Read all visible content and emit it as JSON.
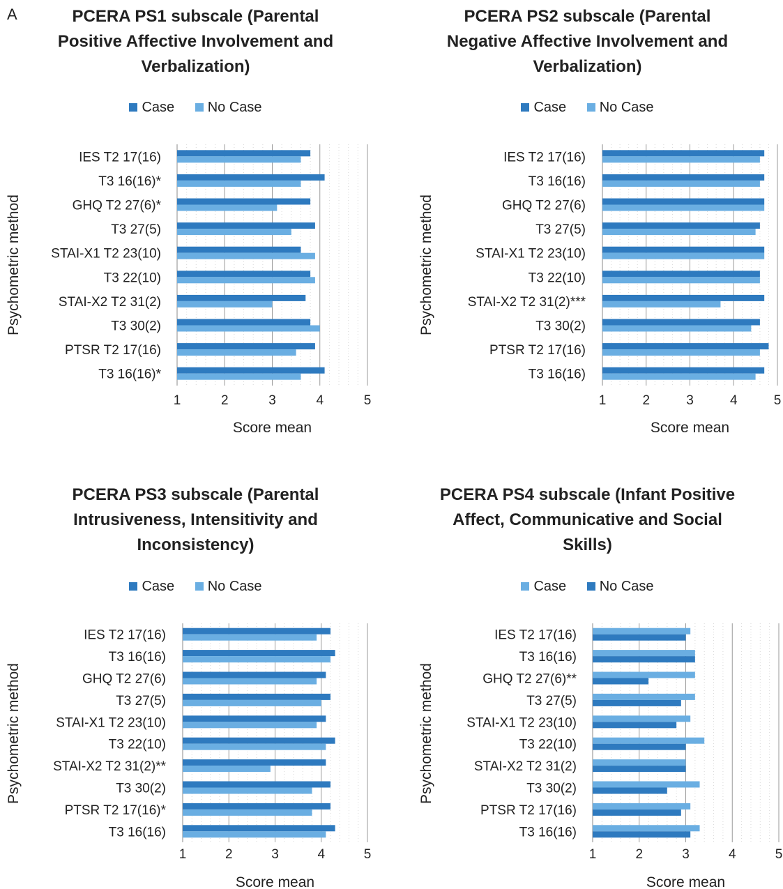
{
  "panel_label": "A",
  "colors": {
    "dark": "#2e7abf",
    "light": "#6aaee2"
  },
  "chart_data": [
    {
      "type": "bar",
      "title_lines": [
        "PCERA PS1 subscale (Parental",
        "Positive Affective Involvement and",
        "Verbalization)"
      ],
      "ylabel": "Psychometric method",
      "xlabel": "Score mean",
      "xlim": [
        1,
        5
      ],
      "xticks": [
        "1",
        "2",
        "3",
        "4",
        "5"
      ],
      "categories": [
        "IES T2 17(16)",
        "T3 16(16)*",
        "GHQ T2 27(6)*",
        "T3 27(5)",
        "STAI-X1 T2 23(10)",
        "T3 22(10)",
        "STAI-X2 T2 31(2)",
        "T3 30(2)",
        "PTSR T2 17(16)",
        "T3 16(16)*"
      ],
      "series": [
        {
          "name": "Case",
          "color_key": "dark",
          "values": [
            3.8,
            4.1,
            3.8,
            3.9,
            3.6,
            3.8,
            3.7,
            3.8,
            3.9,
            4.1
          ]
        },
        {
          "name": "No Case",
          "color_key": "light",
          "values": [
            3.6,
            3.6,
            3.1,
            3.4,
            3.9,
            3.9,
            3.0,
            4.0,
            3.5,
            3.6
          ]
        }
      ]
    },
    {
      "type": "bar",
      "title_lines": [
        "PCERA PS2 subscale (Parental",
        "Negative Affective Involvement and",
        "Verbalization)"
      ],
      "ylabel": "Psychometric method",
      "xlabel": "Score mean",
      "xlim": [
        1,
        5
      ],
      "xticks": [
        "1",
        "2",
        "3",
        "4",
        "5"
      ],
      "categories": [
        "IES T2 17(16)",
        "T3 16(16)",
        "GHQ T2 27(6)",
        "T3 27(5)",
        "STAI-X1 T2 23(10)",
        "T3 22(10)",
        "STAI-X2 T2 31(2)***",
        "T3 30(2)",
        "PTSR T2 17(16)",
        "T3 16(16)"
      ],
      "series": [
        {
          "name": "Case",
          "color_key": "dark",
          "values": [
            4.7,
            4.7,
            4.7,
            4.6,
            4.7,
            4.6,
            4.7,
            4.6,
            4.8,
            4.7
          ]
        },
        {
          "name": "No Case",
          "color_key": "light",
          "values": [
            4.6,
            4.6,
            4.7,
            4.5,
            4.7,
            4.6,
            3.7,
            4.4,
            4.6,
            4.5
          ]
        }
      ]
    },
    {
      "type": "bar",
      "title_lines": [
        "PCERA PS3 subscale (Parental",
        "Intrusiveness, Intensitivity and",
        "Inconsistency)"
      ],
      "ylabel": "Psychometric method",
      "xlabel": "Score mean",
      "xlim": [
        1,
        5
      ],
      "xticks": [
        "1",
        "2",
        "3",
        "4",
        "5"
      ],
      "categories": [
        "IES T2 17(16)",
        "T3 16(16)",
        "GHQ T2 27(6)",
        "T3 27(5)",
        "STAI-X1 T2 23(10)",
        "T3 22(10)",
        "STAI-X2 T2  31(2)**",
        "T3 30(2)",
        "PTSR   T2 17(16)*",
        "T3 16(16)"
      ],
      "series": [
        {
          "name": "Case",
          "color_key": "dark",
          "values": [
            4.2,
            4.3,
            4.1,
            4.2,
            4.1,
            4.3,
            4.1,
            4.2,
            4.2,
            4.3
          ]
        },
        {
          "name": "No Case",
          "color_key": "light",
          "values": [
            3.9,
            4.2,
            3.9,
            4.0,
            3.9,
            4.1,
            2.9,
            3.8,
            3.8,
            4.1
          ]
        }
      ]
    },
    {
      "type": "bar",
      "title_lines": [
        "PCERA PS4 subscale (Infant Positive",
        "Affect, Communicative and Social",
        "Skills)"
      ],
      "ylabel": "Psychometric method",
      "xlabel": "Score mean",
      "xlim": [
        1,
        5
      ],
      "xticks": [
        "1",
        "2",
        "3",
        "4",
        "5"
      ],
      "categories": [
        "IES T2 17(16)",
        "T3 16(16)",
        "GHQ T2 27(6)**",
        "T3 27(5)",
        "STAI-X1 T2 23(10)",
        "T3 22(10)",
        "STAI-X2 T2  31(2)",
        "T3 30(2)",
        "PTSR   T2 17(16)",
        "T3 16(16)"
      ],
      "series": [
        {
          "name": "Case",
          "color_key": "light",
          "values": [
            3.1,
            3.2,
            3.2,
            3.2,
            3.1,
            3.4,
            3.0,
            3.3,
            3.1,
            3.3
          ]
        },
        {
          "name": "No Case",
          "color_key": "dark",
          "values": [
            3.0,
            3.2,
            2.2,
            2.9,
            2.8,
            3.0,
            3.0,
            2.6,
            2.9,
            3.1
          ]
        }
      ]
    }
  ]
}
